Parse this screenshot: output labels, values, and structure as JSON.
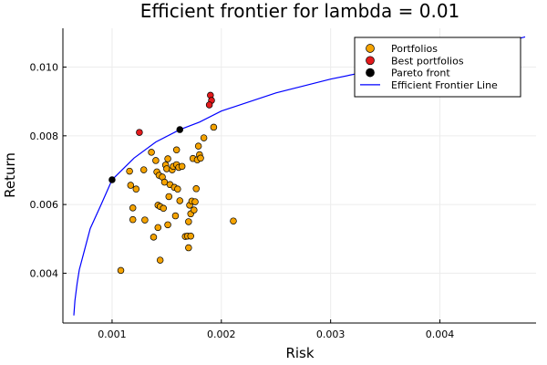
{
  "chart_data": {
    "type": "scatter",
    "title": "Efficient frontier for lambda = 0.01",
    "xlabel": "Risk",
    "ylabel": "Return",
    "xlim": [
      0.00055,
      0.00488
    ],
    "ylim": [
      0.00255,
      0.01113
    ],
    "xticks": [
      0.001,
      0.002,
      0.003,
      0.004
    ],
    "xtick_labels": [
      "0.001",
      "0.002",
      "0.003",
      "0.004"
    ],
    "yticks": [
      0.004,
      0.006,
      0.008,
      0.01
    ],
    "ytick_labels": [
      "0.004",
      "0.006",
      "0.008",
      "0.010"
    ],
    "grid": true,
    "legend_position": "top-right",
    "colors": {
      "portfolios": "#f5a300",
      "best": "#e31a1c",
      "pareto": "#000000",
      "line": "#0000ff",
      "grid": "#ececec",
      "axis": "#000000"
    },
    "series": [
      {
        "name": "Portfolios",
        "kind": "scatter",
        "points": [
          [
            0.00108,
            0.00408
          ],
          [
            0.00116,
            0.00697
          ],
          [
            0.00117,
            0.00656
          ],
          [
            0.00119,
            0.0059
          ],
          [
            0.00119,
            0.00556
          ],
          [
            0.00122,
            0.00645
          ],
          [
            0.00129,
            0.00701
          ],
          [
            0.0013,
            0.00555
          ],
          [
            0.00136,
            0.00752
          ],
          [
            0.00138,
            0.00505
          ],
          [
            0.0014,
            0.00728
          ],
          [
            0.00141,
            0.00695
          ],
          [
            0.00142,
            0.00598
          ],
          [
            0.00142,
            0.00533
          ],
          [
            0.00143,
            0.00685
          ],
          [
            0.00144,
            0.00594
          ],
          [
            0.00144,
            0.00438
          ],
          [
            0.00146,
            0.0068
          ],
          [
            0.00147,
            0.00589
          ],
          [
            0.00148,
            0.00665
          ],
          [
            0.00149,
            0.00715
          ],
          [
            0.0015,
            0.00704
          ],
          [
            0.00151,
            0.00733
          ],
          [
            0.00151,
            0.00541
          ],
          [
            0.00152,
            0.00623
          ],
          [
            0.00153,
            0.00658
          ],
          [
            0.00155,
            0.00701
          ],
          [
            0.00156,
            0.00711
          ],
          [
            0.00157,
            0.0065
          ],
          [
            0.00158,
            0.00567
          ],
          [
            0.00159,
            0.00759
          ],
          [
            0.00159,
            0.00716
          ],
          [
            0.0016,
            0.00645
          ],
          [
            0.00161,
            0.00708
          ],
          [
            0.00162,
            0.00611
          ],
          [
            0.00164,
            0.00711
          ],
          [
            0.00167,
            0.00507
          ],
          [
            0.00169,
            0.00508
          ],
          [
            0.0017,
            0.0055
          ],
          [
            0.0017,
            0.00474
          ],
          [
            0.00171,
            0.00598
          ],
          [
            0.00172,
            0.00508
          ],
          [
            0.00172,
            0.00573
          ],
          [
            0.00173,
            0.0061
          ],
          [
            0.00174,
            0.00734
          ],
          [
            0.00175,
            0.00584
          ],
          [
            0.00176,
            0.00608
          ],
          [
            0.00177,
            0.00646
          ],
          [
            0.00178,
            0.0073
          ],
          [
            0.00179,
            0.0077
          ],
          [
            0.0018,
            0.00745
          ],
          [
            0.00181,
            0.00735
          ],
          [
            0.00184,
            0.00794
          ],
          [
            0.00193,
            0.00825
          ],
          [
            0.00211,
            0.00552
          ]
        ]
      },
      {
        "name": "Best portfolios",
        "kind": "scatter",
        "points": [
          [
            0.00125,
            0.0081
          ],
          [
            0.0019,
            0.00918
          ],
          [
            0.00191,
            0.00903
          ],
          [
            0.00189,
            0.0089
          ]
        ]
      },
      {
        "name": "Pareto front",
        "kind": "scatter",
        "points": [
          [
            0.001,
            0.00672
          ],
          [
            0.00162,
            0.00818
          ]
        ]
      },
      {
        "name": "Efficient Frontier Line",
        "kind": "line",
        "points": [
          [
            0.00065,
            0.00277
          ],
          [
            0.00066,
            0.0032
          ],
          [
            0.00068,
            0.0037
          ],
          [
            0.0007,
            0.0041
          ],
          [
            0.00075,
            0.0047
          ],
          [
            0.0008,
            0.0053
          ],
          [
            0.0009,
            0.006
          ],
          [
            0.001,
            0.00672
          ],
          [
            0.0012,
            0.00735
          ],
          [
            0.0014,
            0.00782
          ],
          [
            0.00162,
            0.00818
          ],
          [
            0.0018,
            0.0084
          ],
          [
            0.002,
            0.00872
          ],
          [
            0.0025,
            0.00925
          ],
          [
            0.003,
            0.00965
          ],
          [
            0.0035,
            0.00998
          ],
          [
            0.004,
            0.0103
          ],
          [
            0.0045,
            0.01065
          ],
          [
            0.00478,
            0.01088
          ]
        ]
      }
    ]
  }
}
